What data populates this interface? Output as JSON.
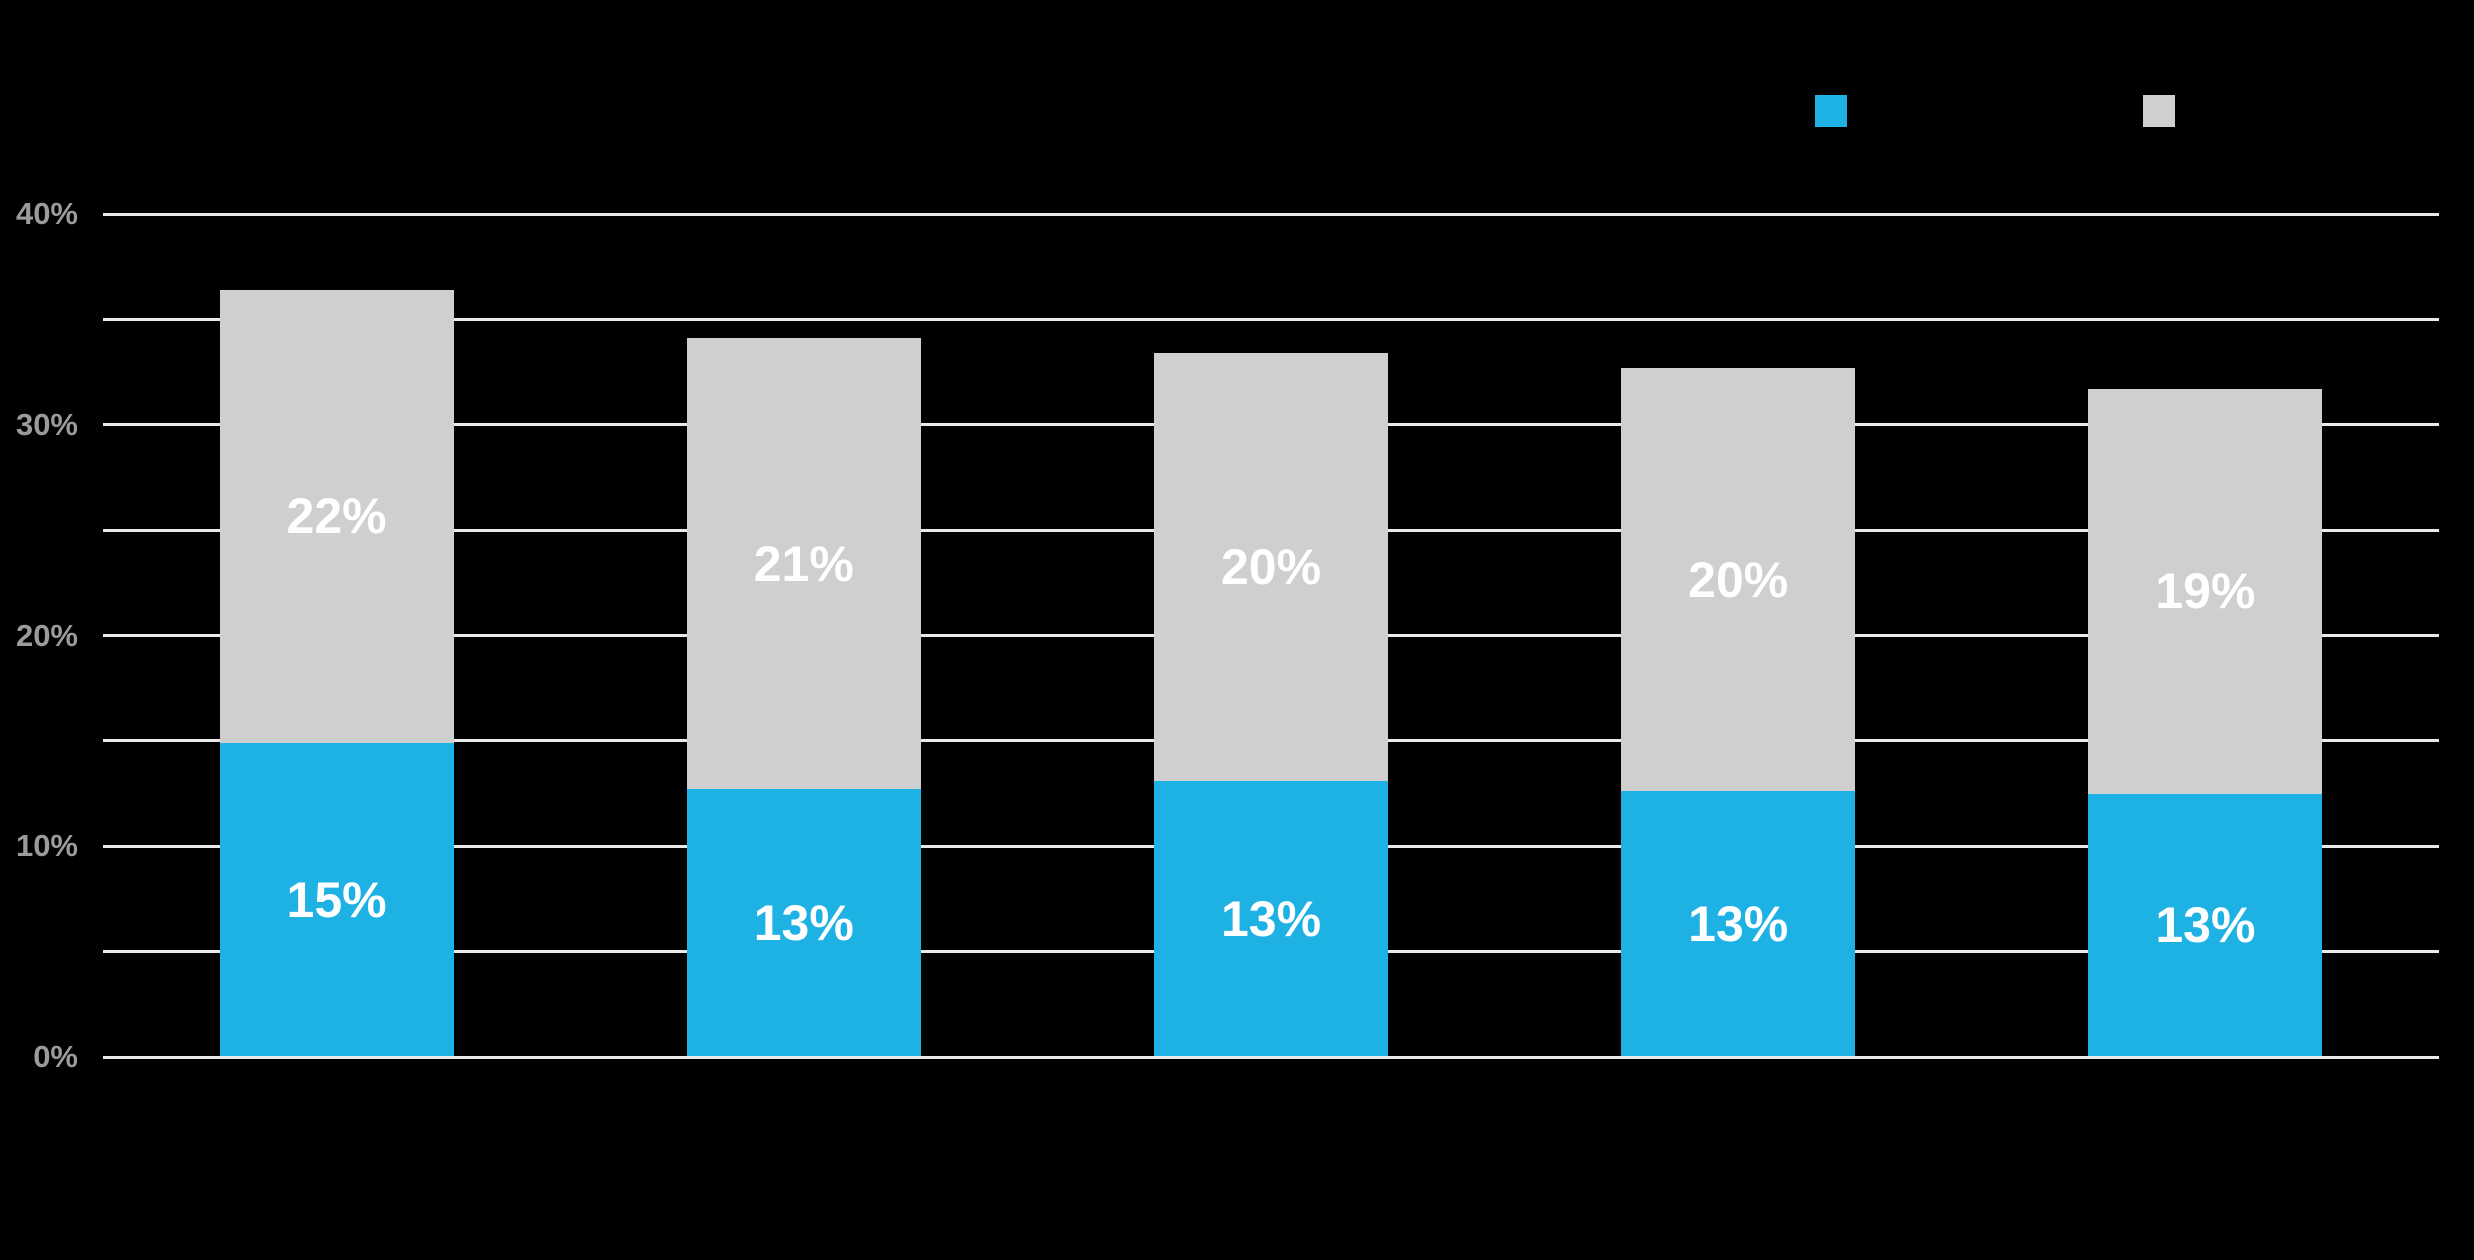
{
  "background": "#000000",
  "legend": {
    "items": [
      {
        "name": "blue-series",
        "color": "#1EB1E4",
        "label": ""
      },
      {
        "name": "gray-series",
        "color": "#D0CFCF",
        "label": ""
      }
    ]
  },
  "chart_data": {
    "type": "bar",
    "stacked": true,
    "title": "",
    "categories": [
      "",
      "",
      "",
      "",
      ""
    ],
    "series": [
      {
        "name": "blue (bottom segment)",
        "color": "#1EB1E4",
        "values": [
          14.9,
          12.7,
          13.1,
          12.6,
          12.5
        ],
        "data_labels": [
          "15%",
          "13%",
          "13%",
          "13%",
          "13%"
        ],
        "label_color": "#FFFFFF"
      },
      {
        "name": "gray (top segment)",
        "color": "#D0CFCF",
        "values": [
          21.5,
          21.4,
          20.3,
          20.1,
          19.2
        ],
        "data_labels": [
          "22%",
          "21%",
          "20%",
          "20%",
          "19%"
        ],
        "label_color": "#FFFFFF"
      }
    ],
    "totals_implied": [
      36.4,
      34.1,
      33.4,
      32.7,
      31.7
    ],
    "ylim": [
      0,
      40
    ],
    "gridline_step": 5,
    "yticks_labeled": [
      "0%",
      "10%",
      "20%",
      "30%",
      "40%"
    ],
    "ytick_label_color": "#9B9B9B",
    "gridline_color": "#E9E9E9",
    "grid": true,
    "legend_position": "top-right",
    "background_color": "#000000"
  }
}
